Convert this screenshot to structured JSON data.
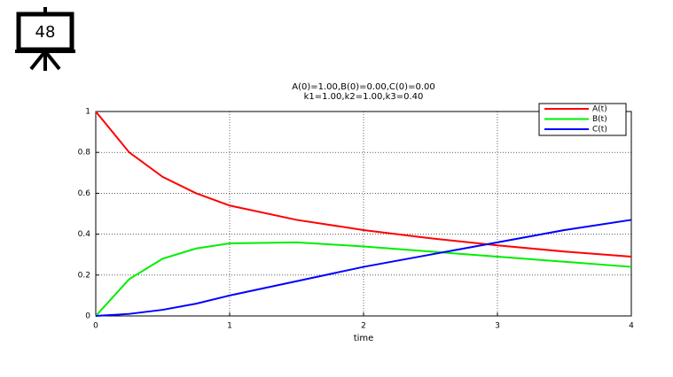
{
  "slide_number": "48",
  "chart_data": {
    "type": "line",
    "title": [
      "A(0)=1.00,B(0)=0.00,C(0)=0.00",
      "k1=1.00,k2=1.00,k3=0.40"
    ],
    "x_label": "time",
    "x": [
      0,
      0.25,
      0.5,
      0.75,
      1,
      1.5,
      2,
      2.5,
      3,
      3.5,
      4
    ],
    "series": [
      {
        "name": "A(t)",
        "color": "#ff0000",
        "values": [
          1,
          0.8,
          0.68,
          0.6,
          0.54,
          0.47,
          0.42,
          0.38,
          0.345,
          0.315,
          0.29
        ]
      },
      {
        "name": "B(t)",
        "color": "#00ee00",
        "values": [
          0,
          0.18,
          0.28,
          0.33,
          0.355,
          0.36,
          0.34,
          0.315,
          0.29,
          0.265,
          0.24
        ]
      },
      {
        "name": "C(t)",
        "color": "#0000ff",
        "values": [
          0,
          0.01,
          0.03,
          0.06,
          0.1,
          0.17,
          0.24,
          0.3,
          0.36,
          0.42,
          0.47
        ]
      }
    ],
    "xlim": [
      0,
      4
    ],
    "ylim": [
      0,
      1
    ],
    "xticks": [
      0,
      1,
      2,
      3,
      4
    ],
    "yticks": [
      0,
      0.2,
      0.4,
      0.6,
      0.8,
      1
    ],
    "grid": true,
    "legend": "top-right"
  }
}
